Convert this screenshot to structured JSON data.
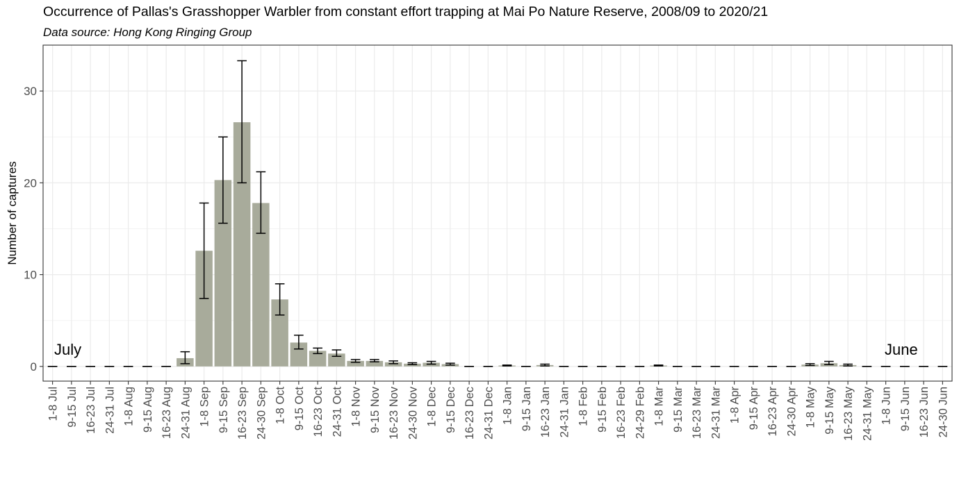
{
  "chart_data": {
    "type": "bar",
    "title": "Occurrence of Pallas's Grasshopper Warbler from constant effort trapping at Mai Po Nature Reserve, 2008/09 to 2020/21",
    "subtitle": "Data source: Hong Kong Ringing Group",
    "xlabel": "",
    "ylabel": "Number of captures",
    "ylim": [
      -1.6,
      35
    ],
    "yticks": [
      0,
      10,
      20,
      30
    ],
    "grid": true,
    "bar_color": "#a8ab9b",
    "errorbar_color": "#000000",
    "annotations": [
      "July",
      "June"
    ],
    "categories": [
      "1-8 Jul",
      "9-15 Jul",
      "16-23 Jul",
      "24-31 Jul",
      "1-8 Aug",
      "9-15 Aug",
      "16-23 Aug",
      "24-31 Aug",
      "1-8 Sep",
      "9-15 Sep",
      "16-23 Sep",
      "24-30 Sep",
      "1-8 Oct",
      "9-15 Oct",
      "16-23 Oct",
      "24-31 Oct",
      "1-8 Nov",
      "9-15 Nov",
      "16-23 Nov",
      "24-30 Nov",
      "1-8 Dec",
      "9-15 Dec",
      "16-23 Dec",
      "24-31 Dec",
      "1-8 Jan",
      "9-15 Jan",
      "16-23 Jan",
      "24-31 Jan",
      "1-8 Feb",
      "9-15 Feb",
      "16-23 Feb",
      "24-29 Feb",
      "1-8 Mar",
      "9-15 Mar",
      "16-23 Mar",
      "24-31 Mar",
      "1-8 Apr",
      "9-15 Apr",
      "16-23 Apr",
      "24-30 Apr",
      "1-8 May",
      "9-15 May",
      "16-23 May",
      "24-31 May",
      "1-8 Jun",
      "9-15 Jun",
      "16-23 Jun",
      "24-30 Jun"
    ],
    "values": [
      0,
      0,
      0,
      0,
      0,
      0,
      0,
      0.9,
      12.6,
      20.3,
      26.6,
      17.8,
      7.3,
      2.6,
      1.7,
      1.4,
      0.6,
      0.6,
      0.45,
      0.3,
      0.4,
      0.25,
      0,
      0,
      0.1,
      0,
      0.15,
      0,
      0,
      0,
      0,
      0,
      0.1,
      0,
      0,
      0,
      0,
      0,
      0,
      0,
      0.2,
      0.35,
      0.15,
      0,
      0,
      0,
      0,
      0
    ],
    "err_low": [
      0,
      0,
      0,
      0,
      0,
      0,
      0,
      0.3,
      7.4,
      15.6,
      20.0,
      14.5,
      5.6,
      1.9,
      1.4,
      1.1,
      0.45,
      0.5,
      0.3,
      0.2,
      0.25,
      0.15,
      0,
      0,
      0.05,
      0,
      0.05,
      0,
      0,
      0,
      0,
      0,
      0.05,
      0,
      0,
      0,
      0,
      0,
      0,
      0,
      0.1,
      0.2,
      0.05,
      0,
      0,
      0,
      0,
      0
    ],
    "err_high": [
      0,
      0,
      0,
      0,
      0,
      0,
      0,
      1.6,
      17.8,
      25.0,
      33.3,
      21.2,
      9.0,
      3.4,
      2.0,
      1.8,
      0.75,
      0.75,
      0.6,
      0.4,
      0.55,
      0.35,
      0,
      0,
      0.15,
      0,
      0.25,
      0,
      0,
      0,
      0,
      0,
      0.15,
      0,
      0,
      0,
      0,
      0,
      0,
      0,
      0.3,
      0.55,
      0.25,
      0,
      0,
      0,
      0,
      0
    ]
  }
}
